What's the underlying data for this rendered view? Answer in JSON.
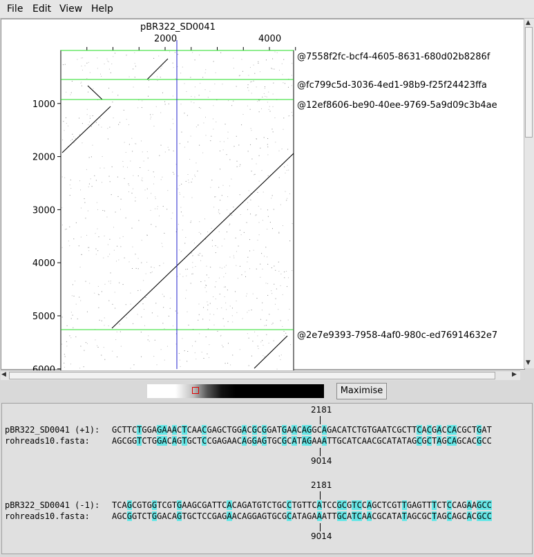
{
  "menu": [
    "File",
    "Edit",
    "View",
    "Help"
  ],
  "dotplot": {
    "reference_name": "pBR322_SD0041",
    "x_ticks": [
      2000,
      4000
    ],
    "y_ticks": [
      1000,
      2000,
      3000,
      4000,
      5000,
      6000
    ],
    "read_labels": [
      "@7558f2fc-bcf4-4605-8631-680d02b8286f",
      "@fc799c5d-3036-4ed1-98b9-f25f24423ffa",
      "@12ef8606-be90-40ee-9769-5a9d09c3b4ae",
      "@2e7e9393-7958-4af0-980c-ed76914632e7"
    ]
  },
  "maximise_label": "Maximise",
  "alignments": [
    {
      "top_coord": "2181",
      "ref_label": "pBR322_SD0041 (+1):",
      "ref_seq": "GCTTCTGGAGAAACTCAACGAGCTGGACGCGGATGAACAGGCAGACATCTGTGAATCGCTTCACGACCACGCTGAT",
      "read_label": "rohreads10.fasta:",
      "read_seq": "AGCGGTCTGGACAGTGCTCCGAGAACAGGAGTGCGCATAGAAATTGCATCAACGCATATAGCGCTAGCAGCACGCC",
      "bottom_coord": "9014"
    },
    {
      "top_coord": "2181",
      "ref_label": "pBR322_SD0041 (-1):",
      "ref_seq": "TCAGCGTGGTCGTGAAGCGATTCACAGATGTCTGCCTGTTCATCCGCGTCCAGCTCGTTGAGTTTCTCCAGAAGCC",
      "read_label": "rohreads10.fasta:",
      "read_seq": "AGCGGTCTGGACAGTGCTCCGAGAACAGGAGTGCGCATAGAAATTGCATCAACGCATATAGCGCTAGCAGCACGCC",
      "bottom_coord": "9014"
    }
  ]
}
